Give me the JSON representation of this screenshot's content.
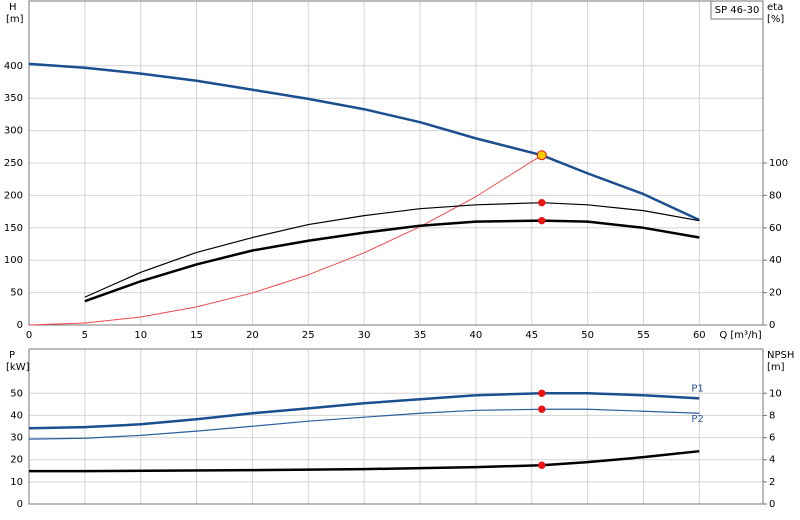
{
  "chart_data": [
    {
      "type": "line",
      "title": "SP 46-30",
      "ylabel": "H",
      "yunit": "[m]",
      "y2label": "eta",
      "y2unit": "[%]",
      "xlabel": "Q [m³/h]",
      "xlim": [
        0,
        65.7
      ],
      "xticks": [
        0,
        5,
        10,
        15,
        20,
        25,
        30,
        35,
        40,
        45,
        50,
        55,
        60
      ],
      "ylim": [
        0,
        500
      ],
      "yticks": [
        0,
        50,
        100,
        150,
        200,
        250,
        300,
        350,
        400
      ],
      "y2lim": [
        0,
        200
      ],
      "y2ticks": [
        0,
        20,
        40,
        60,
        80,
        100
      ],
      "grid": true,
      "show_xtick_labels": true,
      "series": [
        {
          "color": "#1b4f8f",
          "line_width": 2.5,
          "x": [
            0,
            5,
            10,
            15,
            20,
            25,
            30,
            35,
            40,
            45.9,
            50,
            55,
            60
          ],
          "values": [
            403,
            397,
            388,
            377,
            363,
            349,
            333,
            313,
            288,
            262,
            234,
            202,
            162
          ]
        },
        {
          "color": "#f04a4a",
          "line_width": 1,
          "x": [
            0,
            5,
            10,
            15,
            20,
            25,
            30,
            35,
            40,
            45.9
          ],
          "values": [
            0,
            3.1,
            12.4,
            27.9,
            49.5,
            77.4,
            111.4,
            151.7,
            198.1,
            262
          ]
        },
        {
          "color": "#000000",
          "line_width": 1.2,
          "axis": "y2",
          "x": [
            5,
            10,
            15,
            20,
            25,
            30,
            35,
            40,
            45.9,
            50,
            55,
            60
          ],
          "values": [
            17.2,
            32.5,
            44.8,
            54,
            62,
            67.5,
            71.8,
            74.2,
            75.5,
            74.2,
            70.6,
            64.4
          ]
        },
        {
          "color": "#000000",
          "line_width": 2.5,
          "axis": "y2",
          "x": [
            5,
            10,
            15,
            20,
            25,
            30,
            35,
            40,
            45.9,
            50,
            55,
            60
          ],
          "values": [
            14.7,
            27,
            37.4,
            46,
            52,
            57,
            61.3,
            63.8,
            64.4,
            63.8,
            60,
            54
          ]
        }
      ],
      "markers": [
        {
          "x": 45.9,
          "y": 262,
          "color": "#f5d000"
        },
        {
          "x": 45.9,
          "y": 75.5,
          "axis": "y2",
          "color": "#ee1111"
        },
        {
          "x": 45.9,
          "y": 64.4,
          "axis": "y2",
          "color": "#ee1111"
        }
      ]
    },
    {
      "type": "line",
      "ylabel": "P",
      "yunit": "[kW]",
      "y2label": "NPSH",
      "y2unit": "[m]",
      "xlim": [
        0,
        65.7
      ],
      "xticks": [
        0,
        5,
        10,
        15,
        20,
        25,
        30,
        35,
        40,
        45,
        50,
        55,
        60
      ],
      "ylim": [
        0,
        70
      ],
      "yticks": [
        0,
        10,
        20,
        30,
        40,
        50
      ],
      "y2lim": [
        0,
        14
      ],
      "y2ticks": [
        0,
        2,
        4,
        6,
        8,
        10
      ],
      "grid": true,
      "show_xtick_labels": false,
      "series": [
        {
          "name": "P1",
          "color": "#1b4f8f",
          "line_width": 2.5,
          "x": [
            0,
            5,
            10,
            15,
            20,
            25,
            30,
            35,
            40,
            45.9,
            50,
            55,
            60
          ],
          "values": [
            34.2,
            34.7,
            36,
            38.3,
            41,
            43.2,
            45.5,
            47.3,
            49.1,
            50,
            50,
            49.1,
            47.7
          ]
        },
        {
          "name": "P2",
          "color": "#2d5f9e",
          "line_width": 1.2,
          "x": [
            0,
            5,
            10,
            15,
            20,
            25,
            30,
            35,
            40,
            45.9,
            50,
            55,
            60
          ],
          "values": [
            29.3,
            29.7,
            31,
            32.9,
            35.1,
            37.4,
            39.2,
            41,
            42.3,
            42.8,
            42.8,
            41.9,
            41
          ]
        },
        {
          "color": "#000000",
          "line_width": 2.5,
          "axis": "y2",
          "x": [
            0,
            5,
            20,
            30,
            40,
            45.9,
            50,
            55,
            60
          ],
          "values": [
            2.97,
            2.97,
            3.06,
            3.15,
            3.33,
            3.5,
            3.78,
            4.23,
            4.77
          ]
        }
      ],
      "markers": [
        {
          "x": 45.9,
          "y": 50,
          "color": "#ee1111"
        },
        {
          "x": 45.9,
          "y": 42.8,
          "color": "#ee1111"
        },
        {
          "x": 45.9,
          "y": 3.5,
          "axis": "y2",
          "color": "#ee1111"
        }
      ]
    }
  ]
}
